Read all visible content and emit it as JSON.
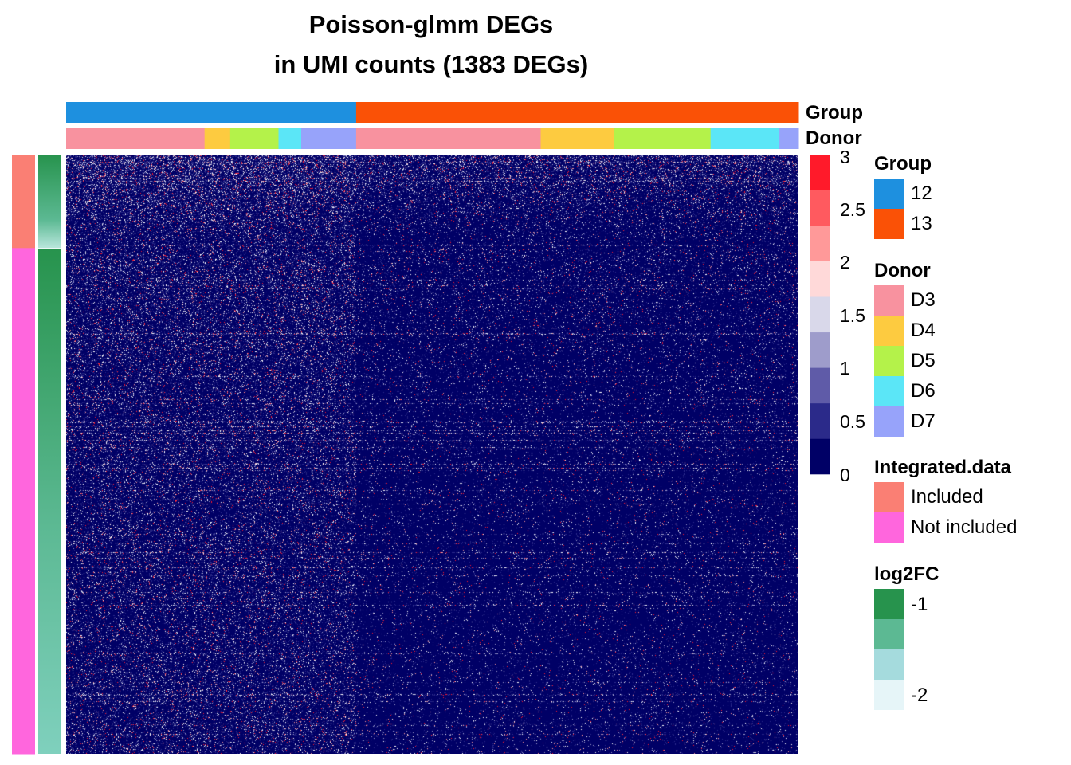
{
  "chart_data": {
    "type": "heatmap",
    "title": "Poisson-glmm DEGs",
    "subtitle": "in UMI counts (1383 DEGs)",
    "color_scale": {
      "ticks": [
        "3",
        "2.5",
        "2",
        "1.5",
        "1",
        "0.5",
        "0"
      ],
      "range": [
        0,
        3
      ],
      "colors": [
        "#000066",
        "#2b2a8a",
        "#5f5ba8",
        "#9e9ccb",
        "#d9d8ea",
        "#ffd9d9",
        "#ff9999",
        "#ff5a5f",
        "#ff1a2a"
      ]
    },
    "column_annotations": [
      {
        "name": "Group",
        "segments": [
          {
            "label": "12",
            "fraction": 0.396
          },
          {
            "label": "13",
            "fraction": 0.604
          }
        ]
      },
      {
        "name": "Donor",
        "segments": [
          {
            "label": "D3",
            "fraction": 0.189
          },
          {
            "label": "D4",
            "fraction": 0.035
          },
          {
            "label": "D5",
            "fraction": 0.066
          },
          {
            "label": "D6",
            "fraction": 0.031
          },
          {
            "label": "D7",
            "fraction": 0.075
          },
          {
            "label": "D3",
            "fraction": 0.252
          },
          {
            "label": "D4",
            "fraction": 0.1
          },
          {
            "label": "D5",
            "fraction": 0.132
          },
          {
            "label": "D6",
            "fraction": 0.094
          },
          {
            "label": "D7",
            "fraction": 0.026
          }
        ]
      }
    ],
    "row_annotations": {
      "integrated_data": [
        {
          "label": "Included",
          "fraction": 0.156
        },
        {
          "label": "Not included",
          "fraction": 0.844
        }
      ],
      "log2fc_range": [
        -1,
        -2
      ]
    },
    "legends": {
      "group": {
        "title": "Group",
        "items": [
          {
            "label": "12",
            "color": "#1e90df"
          },
          {
            "label": "13",
            "color": "#fa5106"
          }
        ]
      },
      "donor": {
        "title": "Donor",
        "items": [
          {
            "label": "D3",
            "color": "#f8929f"
          },
          {
            "label": "D4",
            "color": "#fdcb40"
          },
          {
            "label": "D5",
            "color": "#b4f24a"
          },
          {
            "label": "D6",
            "color": "#5be6f7"
          },
          {
            "label": "D7",
            "color": "#97a3fa"
          }
        ]
      },
      "integrated": {
        "title": "Integrated.data",
        "items": [
          {
            "label": "Included",
            "color": "#fa7f74"
          },
          {
            "label": "Not included",
            "color": "#ff66dd"
          }
        ]
      },
      "log2fc": {
        "title": "log2FC",
        "ticks": [
          "-1",
          "-2"
        ],
        "colors": [
          "#27934d",
          "#5cb993",
          "#a5dbdd",
          "#e6f5f8"
        ]
      }
    }
  }
}
